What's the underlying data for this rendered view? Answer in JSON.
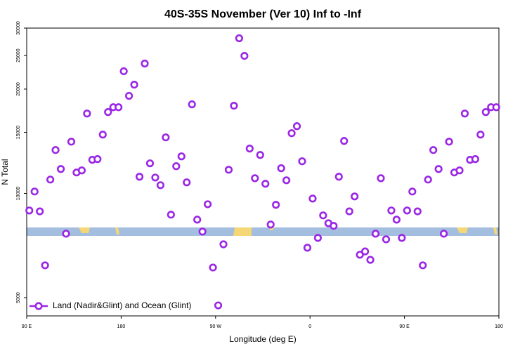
{
  "chart_data": {
    "type": "scatter",
    "title": "40S-35S November (Ver 10)   Inf to -Inf",
    "x_label": "Longitude (deg E)",
    "y_label": "N Total",
    "log_y": true,
    "series": [
      {
        "name": "Land (Nadir&Glint) and Ocean (Glint)",
        "color": "#9b27e6",
        "x": [
          92.5,
          97.5,
          102.5,
          107.5,
          112.5,
          117.5,
          122.5,
          127.5,
          132.5,
          137.5,
          142.5,
          147.5,
          152.5,
          157.5,
          162.5,
          167.5,
          172.5,
          177.5,
          182.5,
          187.5,
          192.5,
          197.5,
          202.5,
          207.5,
          212.5,
          217.5,
          222.5,
          227.5,
          232.5,
          237.5,
          242.5,
          247.5,
          252.5,
          257.5,
          262.5,
          267.5,
          272.5,
          277.5,
          282.5,
          287.5,
          292.5,
          297.5,
          302.5,
          307.5,
          312.5,
          317.5,
          322.5,
          327.5,
          332.5,
          337.5,
          342.5,
          347.5,
          352.5,
          357.5,
          362.5,
          367.5,
          372.5,
          377.5,
          382.5,
          387.5,
          392.5,
          397.5,
          402.5,
          407.5,
          412.5,
          417.5,
          422.5,
          427.5,
          432.5,
          437.5,
          442.5,
          447.5,
          452.5,
          457.5,
          462.5,
          467.5,
          472.5,
          477.5,
          482.5,
          487.5,
          492.5,
          497.5,
          502.5,
          507.5,
          512.5,
          517.5,
          522.5,
          527.5,
          532.5,
          537.5
        ],
        "values": [
          8925,
          10125,
          8875,
          6200,
          10960,
          13340,
          11760,
          7650,
          14100,
          11490,
          11650,
          17000,
          12500,
          12560,
          14780,
          17170,
          17730,
          17730,
          22520,
          19120,
          20600,
          11170,
          23700,
          12210,
          11110,
          10560,
          14510,
          8680,
          11980,
          12790,
          10760,
          18070,
          8400,
          7760,
          9305,
          6110,
          4750,
          7130,
          11700,
          17910,
          28040,
          24940,
          13470,
          11060,
          12910,
          10660,
          8130,
          9270,
          11820,
          10910,
          14920,
          15630,
          12380,
          6970,
          9660,
          7440,
          8640,
          8200,
          8060,
          11170,
          14170,
          8875,
          9800,
          6650,
          6800,
          6430,
          7650,
          11060,
          7370,
          8925,
          8400,
          7440,
          8925,
          10125,
          8875,
          6200,
          10960,
          13340,
          11760,
          7650,
          14100,
          11490,
          11650,
          17000,
          12500,
          12560,
          14780,
          17170,
          17730,
          17730
        ]
      }
    ],
    "xlim": [
      90,
      540
    ],
    "xticks": [
      {
        "value": 90,
        "label": "90 E"
      },
      180,
      {
        "value": 270,
        "label": "90 W"
      },
      {
        "value": 360,
        "label": "0"
      },
      {
        "value": 450,
        "label": "90 E"
      },
      {
        "value": 540,
        "label": "180"
      }
    ],
    "ylim": [
      4430,
      30000
    ],
    "yticks": [
      5000,
      10000,
      15000,
      20000,
      25000,
      30000
    ],
    "legend": "bottom-left"
  }
}
